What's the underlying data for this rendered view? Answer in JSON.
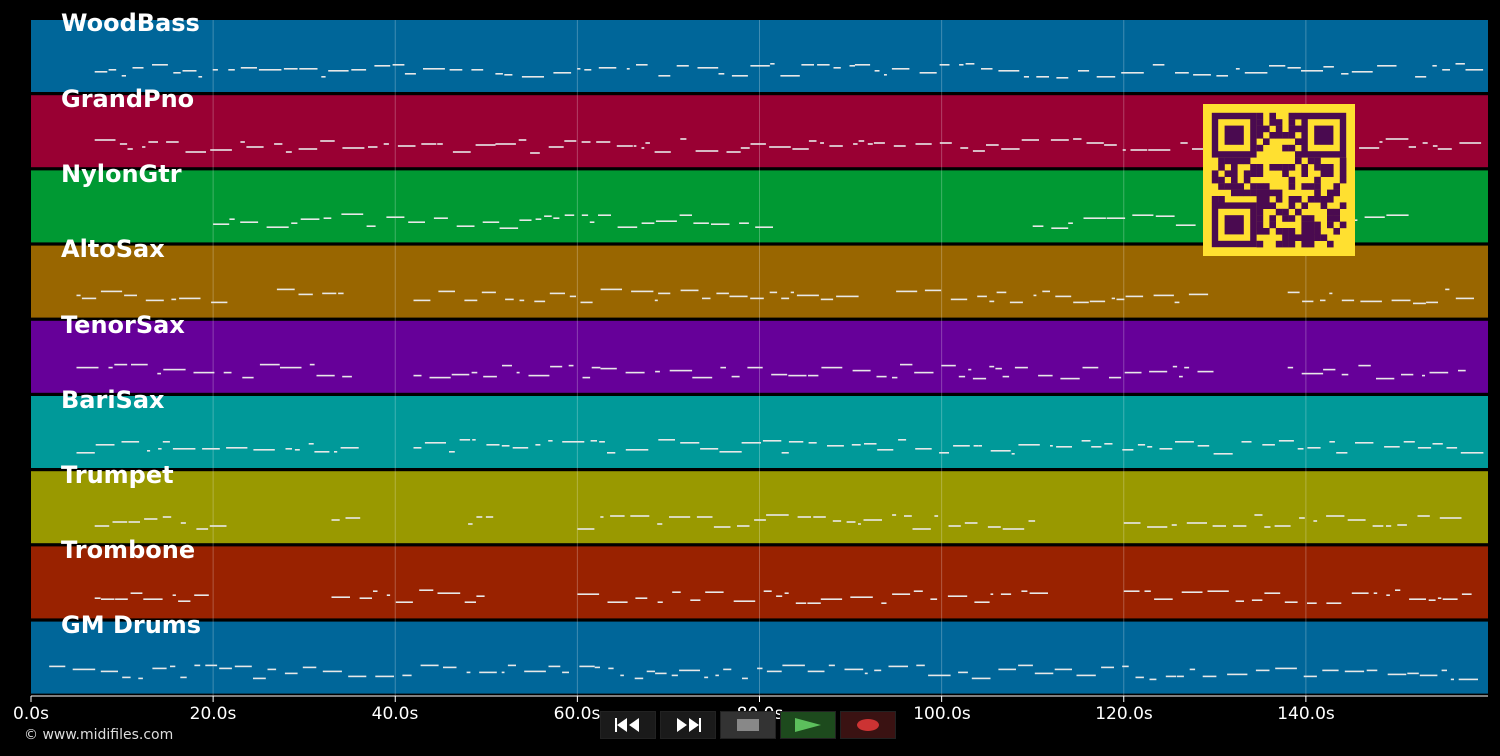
{
  "tracks": [
    {
      "name": "WoodBass",
      "color": "#006699"
    },
    {
      "name": "GrandPno",
      "color": "#990033"
    },
    {
      "name": "NylonGtr",
      "color": "#009933"
    },
    {
      "name": "AltoSax",
      "color": "#996600"
    },
    {
      "name": "TenorSax",
      "color": "#660099"
    },
    {
      "name": "BariSax",
      "color": "#009999"
    },
    {
      "name": "Trumpet",
      "color": "#999900"
    },
    {
      "name": "Trombone",
      "color": "#992200"
    },
    {
      "name": "GM Drums",
      "color": "#006699"
    }
  ],
  "timeline": {
    "ticks": [
      "0.0s",
      "20.0s",
      "40.0s",
      "60.0s",
      "80.0s",
      "100.0s",
      "120.0s",
      "140.0s"
    ]
  },
  "transport": {
    "rewind_icon": "rewind-icon",
    "fast_forward_icon": "fast-forward-icon",
    "stop_icon": "stop-icon",
    "play_icon": "play-icon",
    "record_icon": "record-icon"
  },
  "footer": {
    "copyright": "© www.midifiles.com"
  },
  "qr": {
    "foreground": "#4a0a50",
    "background": "#ffe030"
  }
}
